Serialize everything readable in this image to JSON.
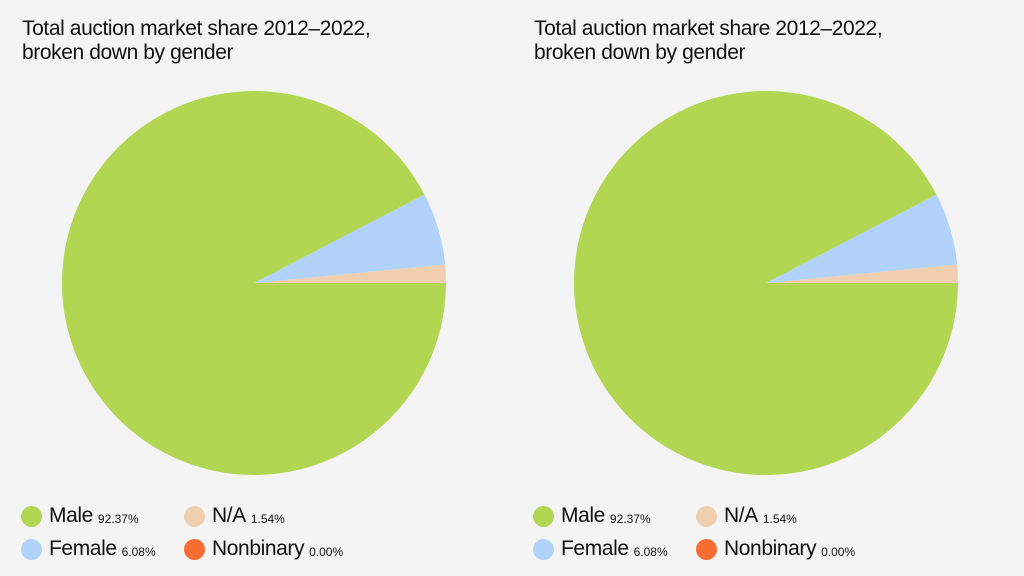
{
  "chart_data": [
    {
      "type": "pie",
      "title_lines": [
        "Total auction market share 2012–2022,",
        "broken down by gender"
      ],
      "slices": [
        {
          "label": "Male",
          "value": 92.37,
          "value_label": "92.37%",
          "color": "#b2d652"
        },
        {
          "label": "N/A",
          "value": 1.54,
          "value_label": "1.54%",
          "color": "#f0cfb0"
        },
        {
          "label": "Female",
          "value": 6.08,
          "value_label": "6.08%",
          "color": "#b1d3fb"
        },
        {
          "label": "Nonbinary",
          "value": 0.0,
          "value_label": "0.00%",
          "color": "#f56d33"
        }
      ]
    },
    {
      "type": "pie",
      "title_lines": [
        "Total auction market share 2012–2022,",
        "broken down by gender"
      ],
      "slices": [
        {
          "label": "Male",
          "value": 92.37,
          "value_label": "92.37%",
          "color": "#b2d652"
        },
        {
          "label": "N/A",
          "value": 1.54,
          "value_label": "1.54%",
          "color": "#f0cfb0"
        },
        {
          "label": "Female",
          "value": 6.08,
          "value_label": "6.08%",
          "color": "#b1d3fb"
        },
        {
          "label": "Nonbinary",
          "value": 0.0,
          "value_label": "0.00%",
          "color": "#f56d33"
        }
      ]
    }
  ]
}
